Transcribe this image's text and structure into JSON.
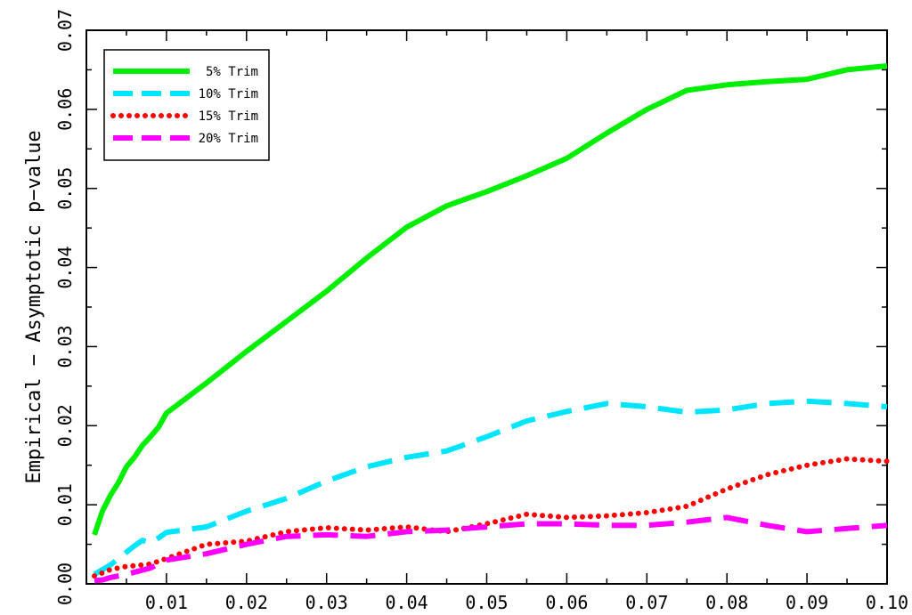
{
  "chart_data": {
    "type": "line",
    "title": "",
    "xlabel": "",
    "ylabel": "Empirical − Asymptotic p−value",
    "xlim": [
      0.0,
      0.1
    ],
    "ylim": [
      0.0,
      0.07
    ],
    "xticks": [
      0.01,
      0.02,
      0.03,
      0.04,
      0.05,
      0.06,
      0.07,
      0.08,
      0.09,
      0.1
    ],
    "xtick_labels": [
      "0.01",
      "0.02",
      "0.03",
      "0.04",
      "0.05",
      "0.06",
      "0.07",
      "0.08",
      "0.09",
      "0.10"
    ],
    "yticks": [
      0.0,
      0.01,
      0.02,
      0.03,
      0.04,
      0.05,
      0.06,
      0.07
    ],
    "ytick_labels": [
      "0.00",
      "0.01",
      "0.02",
      "0.03",
      "0.04",
      "0.05",
      "0.06",
      "0.07"
    ],
    "grid": false,
    "legend_position": "top-left",
    "series": [
      {
        "name": "5% Trim",
        "color": "#00ee00",
        "style": "solid",
        "x": [
          0.001,
          0.002,
          0.003,
          0.004,
          0.005,
          0.006,
          0.007,
          0.008,
          0.009,
          0.01,
          0.015,
          0.02,
          0.025,
          0.03,
          0.035,
          0.04,
          0.045,
          0.05,
          0.055,
          0.06,
          0.065,
          0.07,
          0.075,
          0.08,
          0.085,
          0.09,
          0.095,
          0.1
        ],
        "y": [
          0.0062,
          0.0092,
          0.0112,
          0.0128,
          0.0148,
          0.016,
          0.0175,
          0.0186,
          0.0198,
          0.0216,
          0.0254,
          0.0294,
          0.0332,
          0.037,
          0.0412,
          0.0451,
          0.0478,
          0.0496,
          0.0516,
          0.0538,
          0.057,
          0.06,
          0.0624,
          0.0631,
          0.0635,
          0.0638,
          0.065,
          0.0655
        ]
      },
      {
        "name": "10% Trim",
        "color": "#00e5ff",
        "style": "dash",
        "x": [
          0.001,
          0.002,
          0.003,
          0.004,
          0.005,
          0.006,
          0.007,
          0.008,
          0.009,
          0.01,
          0.015,
          0.02,
          0.025,
          0.03,
          0.035,
          0.04,
          0.045,
          0.05,
          0.055,
          0.06,
          0.065,
          0.07,
          0.075,
          0.08,
          0.085,
          0.09,
          0.095,
          0.1
        ],
        "y": [
          0.0012,
          0.0018,
          0.0024,
          0.0032,
          0.004,
          0.0048,
          0.0055,
          0.0052,
          0.0058,
          0.0065,
          0.0072,
          0.0092,
          0.0108,
          0.013,
          0.0148,
          0.016,
          0.0168,
          0.0186,
          0.0206,
          0.0218,
          0.0228,
          0.0224,
          0.0217,
          0.022,
          0.0228,
          0.0231,
          0.0228,
          0.0224
        ]
      },
      {
        "name": "15% Trim",
        "color": "#ff0000",
        "style": "dot",
        "x": [
          0.001,
          0.002,
          0.003,
          0.005,
          0.008,
          0.01,
          0.015,
          0.02,
          0.025,
          0.03,
          0.035,
          0.04,
          0.045,
          0.05,
          0.055,
          0.06,
          0.065,
          0.07,
          0.075,
          0.08,
          0.085,
          0.09,
          0.095,
          0.1
        ],
        "y": [
          0.001,
          0.0014,
          0.0018,
          0.0022,
          0.0025,
          0.0032,
          0.005,
          0.0054,
          0.0066,
          0.0071,
          0.0068,
          0.0072,
          0.0066,
          0.0076,
          0.0088,
          0.0084,
          0.0086,
          0.009,
          0.0098,
          0.012,
          0.0138,
          0.015,
          0.0158,
          0.0155
        ]
      },
      {
        "name": "20% Trim",
        "color": "#ff00ff",
        "style": "dash",
        "x": [
          0.001,
          0.002,
          0.003,
          0.005,
          0.008,
          0.01,
          0.015,
          0.02,
          0.025,
          0.03,
          0.035,
          0.04,
          0.045,
          0.05,
          0.055,
          0.06,
          0.065,
          0.07,
          0.075,
          0.08,
          0.085,
          0.09,
          0.095,
          0.1
        ],
        "y": [
          0.0004,
          0.0005,
          0.0008,
          0.0012,
          0.002,
          0.003,
          0.0038,
          0.005,
          0.006,
          0.0062,
          0.006,
          0.0066,
          0.0068,
          0.0072,
          0.0076,
          0.0076,
          0.0074,
          0.0074,
          0.0078,
          0.0084,
          0.0074,
          0.0066,
          0.007,
          0.0074
        ]
      }
    ]
  }
}
